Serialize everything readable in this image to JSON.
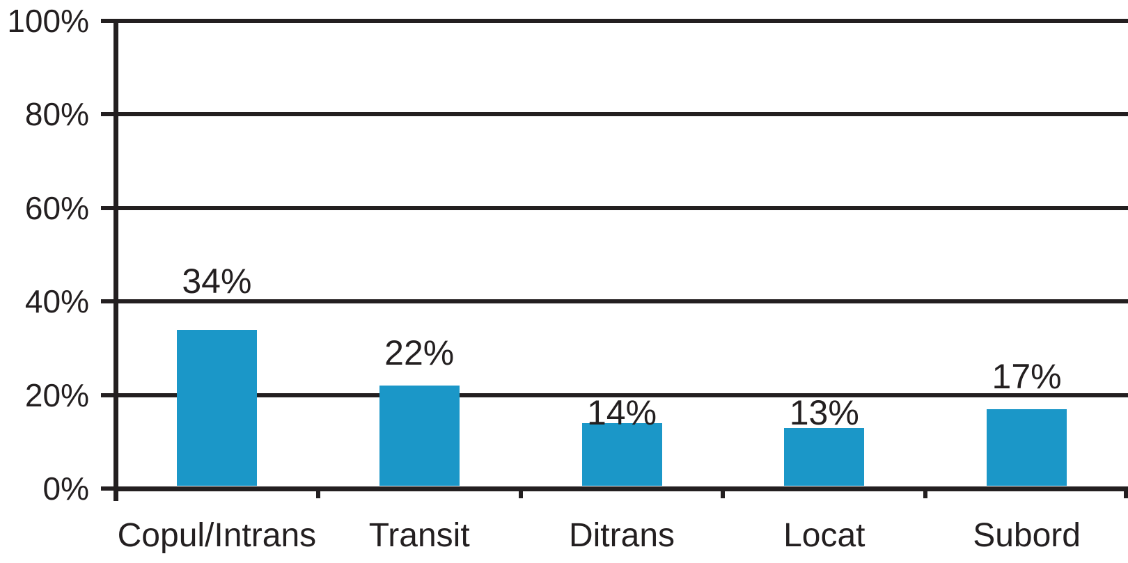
{
  "chart_data": {
    "type": "bar",
    "title": "",
    "subtitle": "",
    "xlabel": "",
    "ylabel": "",
    "categories": [
      "Copul/Intrans",
      "Transit",
      "Ditrans",
      "Locat",
      "Subord"
    ],
    "values": [
      34,
      22,
      14,
      13,
      17
    ],
    "data_labels": [
      "34%",
      "22%",
      "14%",
      "13%",
      "17%"
    ],
    "y_ticks": [
      {
        "label": "100%",
        "value": 100
      },
      {
        "label": "80%",
        "value": 80
      },
      {
        "label": "60%",
        "value": 60
      },
      {
        "label": "40%",
        "value": 40
      },
      {
        "label": "20%",
        "value": 20
      },
      {
        "label": "0%",
        "value": 0
      }
    ],
    "ylim": [
      0,
      100
    ],
    "grid": true,
    "legend": false,
    "colors": {
      "bar": "#1B97C8",
      "axis": "#231F20",
      "grid": "#231F20",
      "text": "#231F20",
      "background": "#FFFFFF"
    }
  }
}
